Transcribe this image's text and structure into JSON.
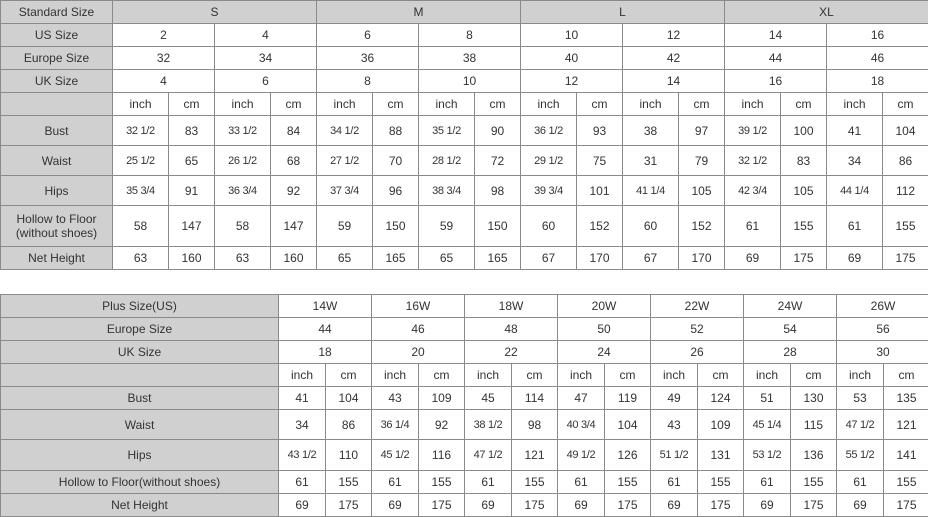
{
  "standard_table": {
    "header_label": "Standard Size",
    "sizes": [
      "S",
      "M",
      "L",
      "XL"
    ],
    "size_rows": [
      {
        "label": "US Size",
        "values": [
          "2",
          "4",
          "6",
          "8",
          "10",
          "12",
          "14",
          "16"
        ]
      },
      {
        "label": "Europe Size",
        "values": [
          "32",
          "34",
          "36",
          "38",
          "40",
          "42",
          "44",
          "46"
        ]
      },
      {
        "label": "UK Size",
        "values": [
          "4",
          "6",
          "8",
          "10",
          "12",
          "14",
          "16",
          "18"
        ]
      }
    ],
    "unit_labels": [
      "inch",
      "cm"
    ],
    "measure_rows": [
      {
        "label": "Bust",
        "values": [
          "32 1/2",
          "83",
          "33 1/2",
          "84",
          "34 1/2",
          "88",
          "35 1/2",
          "90",
          "36 1/2",
          "93",
          "38",
          "97",
          "39 1/2",
          "100",
          "41",
          "104"
        ]
      },
      {
        "label": "Waist",
        "values": [
          "25 1/2",
          "65",
          "26 1/2",
          "68",
          "27 1/2",
          "70",
          "28 1/2",
          "72",
          "29 1/2",
          "75",
          "31",
          "79",
          "32 1/2",
          "83",
          "34",
          "86"
        ]
      },
      {
        "label": "Hips",
        "values": [
          "35 3/4",
          "91",
          "36 3/4",
          "92",
          "37 3/4",
          "96",
          "38 3/4",
          "98",
          "39 3/4",
          "101",
          "41 1/4",
          "105",
          "42 3/4",
          "105",
          "44 1/4",
          "112"
        ]
      },
      {
        "label": "Hollow to Floor\n(without shoes)",
        "values": [
          "58",
          "147",
          "58",
          "147",
          "59",
          "150",
          "59",
          "150",
          "60",
          "152",
          "60",
          "152",
          "61",
          "155",
          "61",
          "155"
        ]
      },
      {
        "label": "Net Height",
        "values": [
          "63",
          "160",
          "63",
          "160",
          "65",
          "165",
          "65",
          "165",
          "67",
          "170",
          "67",
          "170",
          "69",
          "175",
          "69",
          "175"
        ]
      }
    ]
  },
  "plus_table": {
    "header_label": "Plus Size(US)",
    "sizes": [
      "14W",
      "16W",
      "18W",
      "20W",
      "22W",
      "24W",
      "26W"
    ],
    "size_rows": [
      {
        "label": "Europe Size",
        "values": [
          "44",
          "46",
          "48",
          "50",
          "52",
          "54",
          "56"
        ]
      },
      {
        "label": "UK Size",
        "values": [
          "18",
          "20",
          "22",
          "24",
          "26",
          "28",
          "30"
        ]
      }
    ],
    "unit_labels": [
      "inch",
      "cm"
    ],
    "measure_rows": [
      {
        "label": "Bust",
        "values": [
          "41",
          "104",
          "43",
          "109",
          "45",
          "114",
          "47",
          "119",
          "49",
          "124",
          "51",
          "130",
          "53",
          "135"
        ]
      },
      {
        "label": "Waist",
        "values": [
          "34",
          "86",
          "36 1/4",
          "92",
          "38 1/2",
          "98",
          "40 3/4",
          "104",
          "43",
          "109",
          "45 1/4",
          "115",
          "47 1/2",
          "121"
        ]
      },
      {
        "label": "Hips",
        "values": [
          "43 1/2",
          "110",
          "45 1/2",
          "116",
          "47 1/2",
          "121",
          "49 1/2",
          "126",
          "51 1/2",
          "131",
          "53 1/2",
          "136",
          "55 1/2",
          "141"
        ]
      },
      {
        "label": "Hollow to Floor(without shoes)",
        "values": [
          "61",
          "155",
          "61",
          "155",
          "61",
          "155",
          "61",
          "155",
          "61",
          "155",
          "61",
          "155",
          "61",
          "155"
        ]
      },
      {
        "label": "Net Height",
        "values": [
          "69",
          "175",
          "69",
          "175",
          "69",
          "175",
          "69",
          "175",
          "69",
          "175",
          "69",
          "175",
          "69",
          "175"
        ]
      }
    ]
  },
  "colors": {
    "label_bg": "#d0d0d0",
    "border": "#8a8a8a",
    "text": "#333333"
  }
}
